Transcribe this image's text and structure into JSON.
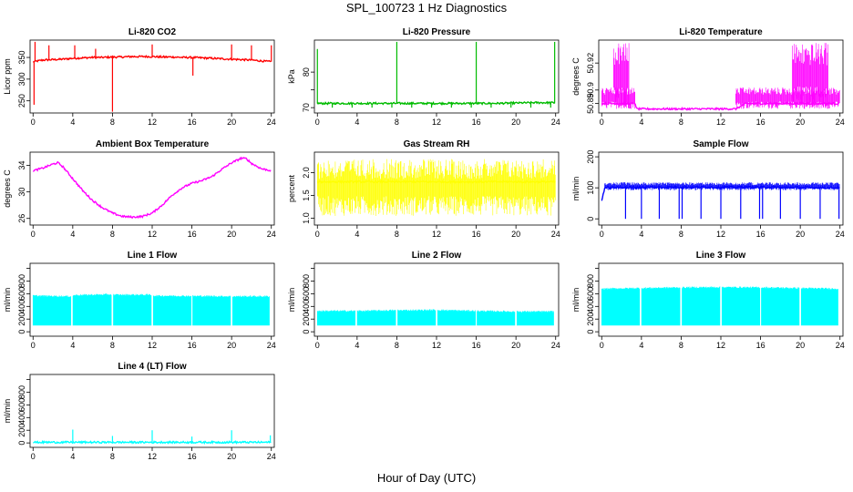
{
  "page": {
    "title": "SPL_100723  1 Hz Diagnostics",
    "xlabel": "Hour of Day (UTC)"
  },
  "chart_data": [
    {
      "type": "line",
      "title": "Li-820 CO2",
      "xlabel": "",
      "ylabel": "Licor ppm",
      "color": "#ff0000",
      "xlim": [
        -0.3,
        24.3
      ],
      "ylim": [
        222,
        390
      ],
      "xticks": [
        0,
        4,
        8,
        12,
        16,
        20,
        24
      ],
      "yticks": [
        250,
        300,
        350
      ],
      "ytick_labels": [
        "250",
        "300",
        "350"
      ],
      "x": [
        0,
        1,
        2,
        3,
        4,
        5,
        6,
        7,
        8,
        9,
        10,
        11,
        12,
        13,
        14,
        15,
        16,
        17,
        18,
        19,
        20,
        21,
        22,
        23,
        24
      ],
      "y": [
        340,
        344,
        345,
        346,
        348,
        349,
        350,
        350,
        351,
        351,
        352,
        352,
        352,
        351,
        351,
        350,
        350,
        349,
        348,
        347,
        346,
        345,
        344,
        342,
        340
      ],
      "spikes": [
        {
          "x": 0.1,
          "y": 241
        },
        {
          "x": 0.2,
          "y": 386
        },
        {
          "x": 8.0,
          "y": 225
        },
        {
          "x": 16.1,
          "y": 308
        },
        {
          "x": 1.6,
          "y": 378
        },
        {
          "x": 4.2,
          "y": 378
        },
        {
          "x": 12.0,
          "y": 380
        },
        {
          "x": 20.0,
          "y": 380
        },
        {
          "x": 24.0,
          "y": 378
        },
        {
          "x": 6.3,
          "y": 370
        },
        {
          "x": 22.0,
          "y": 378
        }
      ]
    },
    {
      "type": "line",
      "title": "Li-820 Pressure",
      "xlabel": "",
      "ylabel": "kPa",
      "color": "#00bb00",
      "xlim": [
        -0.3,
        24.3
      ],
      "ylim": [
        68.5,
        89
      ],
      "xticks": [
        0,
        4,
        8,
        12,
        16,
        20,
        24
      ],
      "yticks": [
        70,
        75,
        80
      ],
      "ytick_labels": [
        "70",
        "",
        "80"
      ],
      "x": [
        0,
        2,
        4,
        6,
        8,
        10,
        12,
        14,
        16,
        18,
        20,
        22,
        24
      ],
      "y": [
        71.2,
        71.2,
        71.2,
        71.2,
        71.2,
        71.2,
        71.2,
        71.2,
        71.2,
        71.2,
        71.3,
        71.4,
        71.4
      ],
      "spikes": [
        {
          "x": 0.0,
          "y": 86.5
        },
        {
          "x": 8.0,
          "y": 88.5
        },
        {
          "x": 16.0,
          "y": 88.5
        },
        {
          "x": 23.9,
          "y": 88.5
        },
        {
          "x": 1.5,
          "y": 70
        },
        {
          "x": 3.5,
          "y": 70
        },
        {
          "x": 5.5,
          "y": 70
        },
        {
          "x": 7.5,
          "y": 70
        },
        {
          "x": 9.5,
          "y": 70
        },
        {
          "x": 11.5,
          "y": 70
        },
        {
          "x": 13.5,
          "y": 70
        },
        {
          "x": 15.5,
          "y": 70
        },
        {
          "x": 17.5,
          "y": 70
        },
        {
          "x": 19.5,
          "y": 70
        },
        {
          "x": 21.5,
          "y": 70
        },
        {
          "x": 23.5,
          "y": 70
        }
      ]
    },
    {
      "type": "line",
      "title": "Li-820 Temperature",
      "xlabel": "",
      "ylabel": "degrees C",
      "color": "#ff00ff",
      "xlim": [
        -0.3,
        24.3
      ],
      "ylim": [
        50.883,
        50.937
      ],
      "xticks": [
        0,
        4,
        8,
        12,
        16,
        20,
        24
      ],
      "yticks": [
        50.89,
        50.9,
        50.92
      ],
      "ytick_labels": [
        "50.89",
        "50.9",
        "50.92"
      ],
      "x": [
        0,
        3.4,
        3.5,
        13.5,
        14.5,
        17.5,
        24
      ],
      "y": [
        50.89,
        50.89,
        50.886,
        50.886,
        50.89,
        50.89,
        50.89
      ],
      "noise_bands": [
        {
          "x": [
            0,
            3.4
          ],
          "low": 50.886,
          "high": 50.902
        },
        {
          "x": [
            13.5,
            24
          ],
          "low": 50.886,
          "high": 50.902
        },
        {
          "x": [
            19.2,
            22.8
          ],
          "low": 50.886,
          "high": 50.935
        },
        {
          "x": [
            1.2,
            2.8
          ],
          "low": 50.886,
          "high": 50.935
        }
      ]
    },
    {
      "type": "line",
      "title": "Ambient Box Temperature",
      "xlabel": "",
      "ylabel": "degrees C",
      "color": "#ff00ff",
      "xlim": [
        -0.3,
        24.3
      ],
      "ylim": [
        25,
        36
      ],
      "xticks": [
        0,
        4,
        8,
        12,
        16,
        20,
        24
      ],
      "yticks": [
        26,
        30,
        34
      ],
      "ytick_labels": [
        "26",
        "30",
        "34"
      ],
      "x": [
        0,
        1,
        2,
        2.5,
        3,
        4,
        5,
        6,
        7,
        8,
        9,
        10,
        11,
        12,
        13,
        14,
        15,
        16,
        17,
        18,
        19,
        20,
        21,
        21.5,
        22,
        23,
        24
      ],
      "y": [
        33.2,
        33.6,
        34.2,
        34.4,
        33.8,
        32.0,
        30.2,
        28.7,
        27.6,
        26.8,
        26.3,
        26.2,
        26.3,
        26.8,
        28.0,
        29.5,
        30.6,
        31.3,
        31.7,
        32.3,
        33.4,
        34.4,
        35.1,
        35.0,
        34.3,
        33.5,
        33.2
      ]
    },
    {
      "type": "line",
      "title": "Gas Stream RH",
      "xlabel": "",
      "ylabel": "percent",
      "color": "#ffff00",
      "xlim": [
        -0.3,
        24.3
      ],
      "ylim": [
        0.85,
        2.45
      ],
      "xticks": [
        0,
        4,
        8,
        12,
        16,
        20,
        24
      ],
      "yticks": [
        1.0,
        1.5,
        2.0
      ],
      "ytick_labels": [
        "1.0",
        "1.5",
        "2.0"
      ],
      "x": [
        0,
        24
      ],
      "y": [
        1.8,
        1.8
      ],
      "noise_bands": [
        {
          "x": [
            0,
            24
          ],
          "low": 1.05,
          "high": 2.3
        }
      ]
    },
    {
      "type": "line",
      "title": "Sample Flow",
      "xlabel": "",
      "ylabel": "ml/min",
      "color": "#0000ff",
      "xlim": [
        -0.3,
        24.3
      ],
      "ylim": [
        -20,
        215
      ],
      "xticks": [
        0,
        4,
        8,
        12,
        16,
        20,
        24
      ],
      "yticks": [
        0,
        100,
        200
      ],
      "ytick_labels": [
        "0",
        "100",
        "200"
      ],
      "x": [
        0,
        0.3,
        1,
        4,
        8,
        12,
        16,
        20,
        24
      ],
      "y": [
        60,
        100,
        101,
        102,
        102,
        102,
        102,
        101,
        100
      ],
      "spikes": [
        {
          "x": 2.4,
          "y": 0
        },
        {
          "x": 4.0,
          "y": 0
        },
        {
          "x": 5.8,
          "y": 0
        },
        {
          "x": 7.8,
          "y": 0
        },
        {
          "x": 8.1,
          "y": 0
        },
        {
          "x": 10.0,
          "y": 0
        },
        {
          "x": 12.0,
          "y": 0
        },
        {
          "x": 14.0,
          "y": 0
        },
        {
          "x": 15.9,
          "y": 0
        },
        {
          "x": 16.2,
          "y": 0
        },
        {
          "x": 18.0,
          "y": 0
        },
        {
          "x": 20.0,
          "y": 0
        },
        {
          "x": 22.0,
          "y": 0
        },
        {
          "x": 23.9,
          "y": 0
        }
      ],
      "noise_bands": [
        {
          "x": [
            0.3,
            24
          ],
          "low": 92,
          "high": 118
        }
      ]
    },
    {
      "type": "area",
      "title": "Line 1 Flow",
      "xlabel": "",
      "ylabel": "ml/min",
      "color": "#00ffff",
      "xlim": [
        -0.3,
        24.3
      ],
      "ylim": [
        -70,
        1080
      ],
      "xticks": [
        0,
        4,
        8,
        12,
        16,
        20,
        24
      ],
      "yticks": [
        0,
        200,
        400,
        600,
        800,
        1000
      ],
      "ytick_labels": [
        "0",
        "200",
        "400",
        "600",
        "800",
        ""
      ],
      "x": [
        0,
        3.8,
        4.2,
        7.8,
        8.2,
        11.8,
        12.2,
        15.8,
        16.2,
        19.8,
        20.2,
        23.8,
        24
      ],
      "y": [
        570,
        560,
        580,
        590,
        585,
        585,
        570,
        565,
        565,
        560,
        560,
        560,
        470
      ],
      "baseline": 100,
      "gaps": [
        3.9,
        8.0,
        12.0,
        16.0,
        20.0,
        23.9
      ]
    },
    {
      "type": "area",
      "title": "Line 2 Flow",
      "xlabel": "",
      "ylabel": "ml/min",
      "color": "#00ffff",
      "xlim": [
        -0.3,
        24.3
      ],
      "ylim": [
        -70,
        1080
      ],
      "xticks": [
        0,
        4,
        8,
        12,
        16,
        20,
        24
      ],
      "yticks": [
        0,
        200,
        400,
        600,
        800,
        1000
      ],
      "ytick_labels": [
        "0",
        "200",
        "400",
        "600",
        "800",
        ""
      ],
      "x": [
        0,
        4,
        8,
        12,
        16,
        20,
        24
      ],
      "y": [
        330,
        330,
        340,
        345,
        330,
        320,
        320
      ],
      "baseline": 100,
      "gaps": [
        3.9,
        8.0,
        12.0,
        16.0,
        20.0,
        23.9
      ]
    },
    {
      "type": "area",
      "title": "Line 3 Flow",
      "xlabel": "",
      "ylabel": "ml/min",
      "color": "#00ffff",
      "xlim": [
        -0.3,
        24.3
      ],
      "ylim": [
        -70,
        1080
      ],
      "xticks": [
        0,
        4,
        8,
        12,
        16,
        20,
        24
      ],
      "yticks": [
        0,
        200,
        400,
        600,
        800,
        1000
      ],
      "ytick_labels": [
        "0",
        "200",
        "400",
        "600",
        "800",
        ""
      ],
      "x": [
        0,
        4,
        8,
        12,
        16,
        20,
        23.8,
        24
      ],
      "y": [
        680,
        690,
        700,
        705,
        700,
        690,
        680,
        530
      ],
      "baseline": 100,
      "gaps": [
        3.9,
        8.0,
        12.0,
        16.0,
        20.0,
        23.9
      ]
    },
    {
      "type": "line",
      "title": "Line 4 (LT) Flow",
      "xlabel": "",
      "ylabel": "ml/min",
      "color": "#00ffff",
      "xlim": [
        -0.3,
        24.3
      ],
      "ylim": [
        -70,
        1080
      ],
      "xticks": [
        0,
        4,
        8,
        12,
        16,
        20,
        24
      ],
      "yticks": [
        0,
        200,
        400,
        600,
        800,
        1000
      ],
      "ytick_labels": [
        "0",
        "200",
        "400",
        "600",
        "800",
        ""
      ],
      "x": [
        0,
        24
      ],
      "y": [
        10,
        10
      ],
      "spikes": [
        {
          "x": 4.0,
          "y": 210
        },
        {
          "x": 8.0,
          "y": 110
        },
        {
          "x": 12.0,
          "y": 200
        },
        {
          "x": 16.0,
          "y": 100
        },
        {
          "x": 20.0,
          "y": 200
        },
        {
          "x": 23.9,
          "y": 120
        }
      ]
    }
  ]
}
